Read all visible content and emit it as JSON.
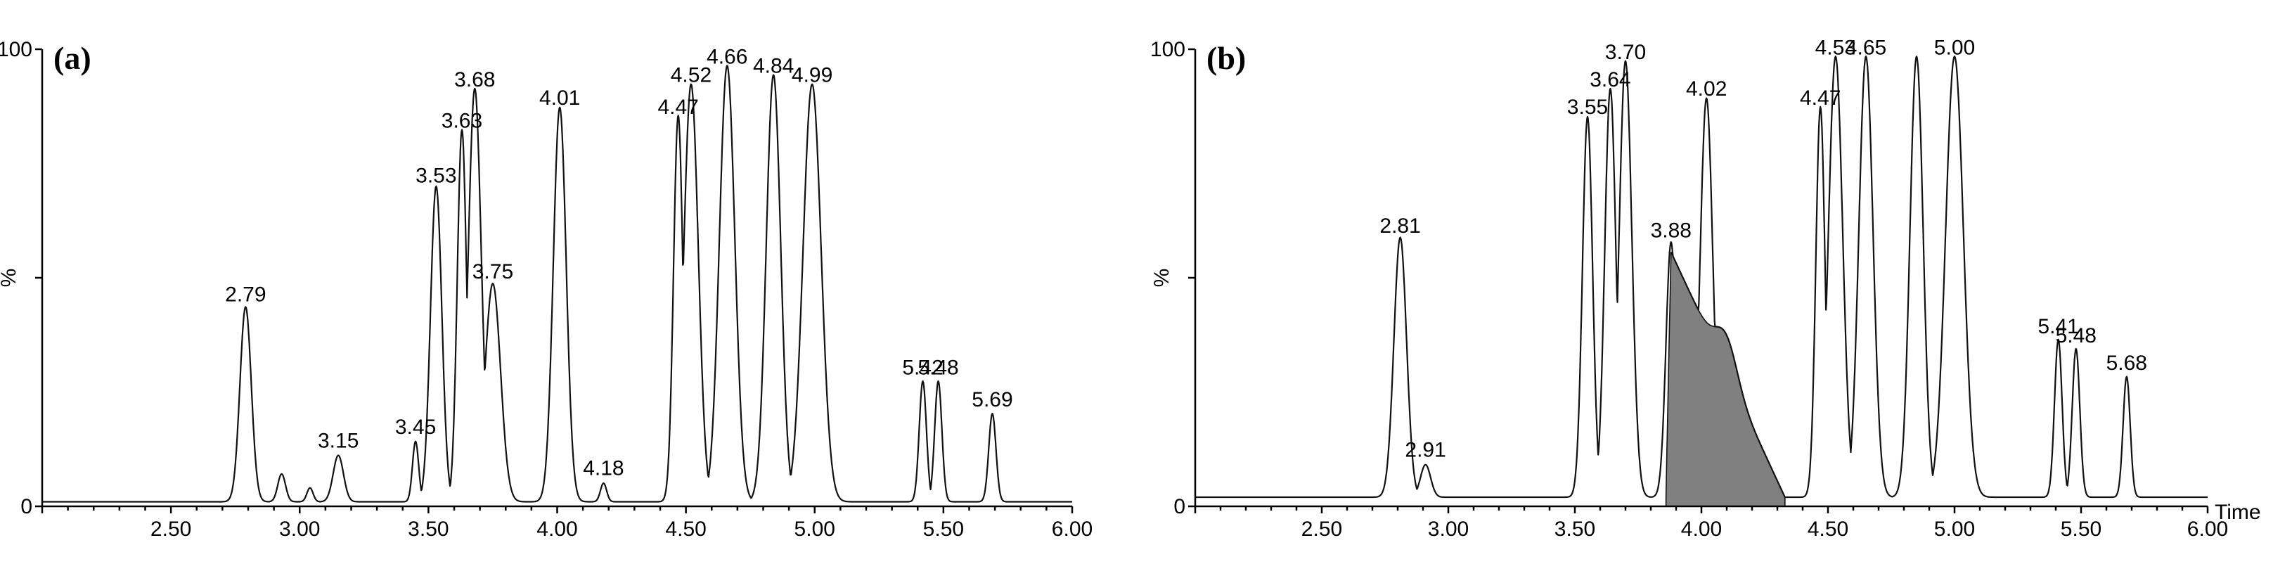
{
  "panels": [
    {
      "label": "(a)",
      "ylabel": "%",
      "y_ticks": [
        "100",
        "0"
      ],
      "x_ticks": [
        "2.50",
        "3.00",
        "3.50",
        "4.00",
        "4.50",
        "5.00",
        "5.50",
        "6.00"
      ],
      "xlabel": ""
    },
    {
      "label": "(b)",
      "ylabel": "%",
      "y_ticks": [
        "100",
        "0"
      ],
      "x_ticks": [
        "2.50",
        "3.00",
        "3.50",
        "4.00",
        "4.50",
        "5.00",
        "5.50",
        "6.00"
      ],
      "xlabel": "Time"
    }
  ],
  "chart_data": [
    {
      "type": "line",
      "panel": "(a)",
      "xlim": [
        2.0,
        6.0
      ],
      "ylim": [
        0,
        100
      ],
      "ylabel": "%",
      "baseline": 1,
      "peaks": [
        {
          "x": 2.79,
          "y": 43,
          "w": 0.022,
          "label": "2.79"
        },
        {
          "x": 2.93,
          "y": 7,
          "w": 0.015
        },
        {
          "x": 3.04,
          "y": 4,
          "w": 0.012
        },
        {
          "x": 3.15,
          "y": 11,
          "w": 0.02,
          "label": "3.15"
        },
        {
          "x": 3.45,
          "y": 14,
          "w": 0.012,
          "label": "3.45"
        },
        {
          "x": 3.53,
          "y": 69,
          "w": 0.022,
          "label": "3.53"
        },
        {
          "x": 3.63,
          "y": 81,
          "w": 0.018,
          "label": "3.63"
        },
        {
          "x": 3.68,
          "y": 90,
          "w": 0.025,
          "label": "3.68"
        },
        {
          "x": 3.75,
          "y": 48,
          "w": 0.03,
          "label": "3.75"
        },
        {
          "x": 4.01,
          "y": 86,
          "w": 0.025,
          "label": "4.01"
        },
        {
          "x": 4.18,
          "y": 5,
          "w": 0.012,
          "label": "4.18"
        },
        {
          "x": 4.47,
          "y": 84,
          "w": 0.018,
          "label": "4.47"
        },
        {
          "x": 4.52,
          "y": 91,
          "w": 0.028,
          "label": "4.52"
        },
        {
          "x": 4.66,
          "y": 95,
          "w": 0.03,
          "label": "4.66"
        },
        {
          "x": 4.84,
          "y": 93,
          "w": 0.028,
          "label": "4.84"
        },
        {
          "x": 4.99,
          "y": 91,
          "w": 0.035,
          "label": "4.99"
        },
        {
          "x": 5.42,
          "y": 27,
          "w": 0.014,
          "label": "5.42"
        },
        {
          "x": 5.48,
          "y": 27,
          "w": 0.014,
          "label": "5.48"
        },
        {
          "x": 5.69,
          "y": 20,
          "w": 0.014,
          "label": "5.69"
        }
      ]
    },
    {
      "type": "line",
      "panel": "(b)",
      "xlim": [
        2.0,
        6.0
      ],
      "ylim": [
        0,
        100
      ],
      "ylabel": "%",
      "xlabel": "Time",
      "baseline": 2,
      "peaks": [
        {
          "x": 2.81,
          "y": 58,
          "w": 0.025,
          "label": "2.81"
        },
        {
          "x": 2.91,
          "y": 9,
          "w": 0.02,
          "label": "2.91"
        },
        {
          "x": 3.55,
          "y": 84,
          "w": 0.02,
          "label": "3.55"
        },
        {
          "x": 3.64,
          "y": 90,
          "w": 0.022,
          "label": "3.64"
        },
        {
          "x": 3.7,
          "y": 96,
          "w": 0.025,
          "label": "3.70"
        },
        {
          "x": 3.88,
          "y": 57,
          "w": 0.02,
          "label": "3.88"
        },
        {
          "x": 4.02,
          "y": 88,
          "w": 0.025,
          "label": "4.02"
        },
        {
          "x": 4.47,
          "y": 86,
          "w": 0.018,
          "label": "4.47"
        },
        {
          "x": 4.53,
          "y": 97,
          "w": 0.028,
          "label": "4.53"
        },
        {
          "x": 4.65,
          "y": 97,
          "w": 0.028,
          "label": "4.65"
        },
        {
          "x": 4.85,
          "y": 97,
          "w": 0.026,
          "label": ""
        },
        {
          "x": 5.0,
          "y": 97,
          "w": 0.035,
          "label": "5.00"
        },
        {
          "x": 5.41,
          "y": 36,
          "w": 0.015,
          "label": "5.41"
        },
        {
          "x": 5.48,
          "y": 34,
          "w": 0.015,
          "label": "5.48"
        },
        {
          "x": 5.68,
          "y": 28,
          "w": 0.014,
          "label": "5.68"
        }
      ],
      "shaded_region": {
        "x_start": 3.86,
        "x_end": 4.33,
        "start_y": 56,
        "end_y": 0
      }
    }
  ]
}
